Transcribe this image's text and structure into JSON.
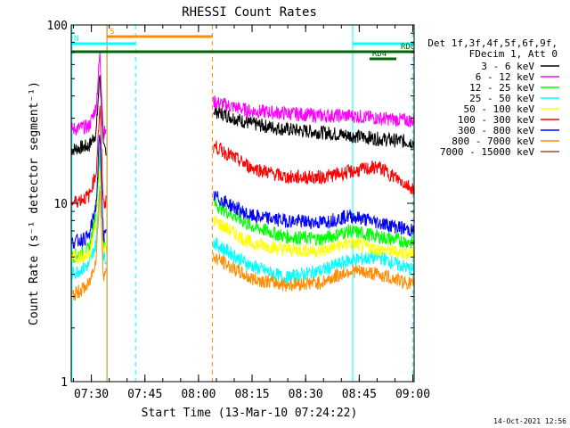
{
  "chart_data": {
    "type": "line",
    "title": "RHESSI Count Rates",
    "xlabel": "Start Time (13-Mar-10 07:24:22)",
    "ylabel": "Count Rate (s⁻¹ detector segment⁻¹)",
    "yscale": "log",
    "ylim": [
      1,
      100
    ],
    "xlim_minutes": [
      0,
      96
    ],
    "x_ticks": [
      {
        "t": 5.63,
        "label": "07:30"
      },
      {
        "t": 20.63,
        "label": "07:45"
      },
      {
        "t": 35.63,
        "label": "08:00"
      },
      {
        "t": 50.63,
        "label": "08:15"
      },
      {
        "t": 65.63,
        "label": "08:30"
      },
      {
        "t": 80.63,
        "label": "08:45"
      },
      {
        "t": 95.63,
        "label": "09:00"
      }
    ],
    "y_ticks": [
      {
        "v": 1,
        "label": "1"
      },
      {
        "v": 10,
        "label": "10"
      },
      {
        "v": 100,
        "label": "100"
      }
    ],
    "data_gap_minutes": [
      9.8,
      39.8
    ],
    "series": [
      {
        "name": "3 - 6 keV",
        "color": "#000000",
        "times": [
          0,
          5,
          7,
          8,
          9,
          40,
          50,
          60,
          70,
          78,
          86,
          96
        ],
        "values": [
          20,
          21,
          25,
          55,
          20,
          33,
          28,
          26,
          25,
          24,
          23,
          22
        ]
      },
      {
        "name": "6 - 12 keV",
        "color": "#ff00ff",
        "times": [
          0,
          5,
          7,
          8,
          9,
          40,
          50,
          60,
          70,
          78,
          86,
          96
        ],
        "values": [
          26,
          27,
          35,
          70,
          25,
          37,
          33,
          32,
          31,
          31,
          30,
          29
        ]
      },
      {
        "name": "12 - 25 keV",
        "color": "#00ff00",
        "times": [
          0,
          5,
          7,
          8,
          9,
          40,
          50,
          60,
          70,
          78,
          86,
          96
        ],
        "values": [
          5,
          5.5,
          9,
          20,
          6,
          10,
          7.5,
          6.5,
          6.3,
          7,
          6.5,
          6
        ]
      },
      {
        "name": "25 - 50 keV",
        "color": "#00ffff",
        "times": [
          0,
          5,
          7,
          8,
          9,
          40,
          50,
          60,
          70,
          78,
          86,
          96
        ],
        "values": [
          4,
          4.5,
          6,
          14,
          5,
          6,
          4.5,
          3.8,
          4.2,
          4.8,
          5,
          4.2
        ]
      },
      {
        "name": "50 - 100 keV",
        "color": "#ffff00",
        "times": [
          0,
          5,
          7,
          8,
          9,
          40,
          50,
          60,
          70,
          78,
          86,
          96
        ],
        "values": [
          5,
          5,
          8,
          16,
          5.5,
          8,
          6,
          5.5,
          5.4,
          6,
          5.5,
          5.2
        ]
      },
      {
        "name": "100 - 300 keV",
        "color": "#ff0000",
        "times": [
          0,
          5,
          7,
          8,
          9,
          40,
          50,
          60,
          70,
          78,
          86,
          96
        ],
        "values": [
          10,
          11,
          15,
          35,
          10,
          21,
          16,
          14,
          14,
          15,
          16,
          12
        ]
      },
      {
        "name": "300 - 800 keV",
        "color": "#0000ff",
        "times": [
          0,
          5,
          7,
          8,
          9,
          40,
          50,
          60,
          70,
          78,
          86,
          96
        ],
        "values": [
          6,
          6.5,
          10,
          25,
          6.5,
          11,
          8.5,
          8,
          7.8,
          8.5,
          7.8,
          7
        ]
      },
      {
        "name": "800 - 7000 keV",
        "color": "#ff8c00",
        "times": [
          0,
          5,
          7,
          8,
          9,
          40,
          50,
          60,
          70,
          78,
          86,
          96
        ],
        "values": [
          3,
          3.5,
          5,
          12,
          4,
          5,
          3.8,
          3.5,
          3.6,
          4.2,
          4,
          3.5
        ]
      },
      {
        "name": "7000 - 15000 keV",
        "color": "#a0522d",
        "times": [],
        "values": []
      }
    ],
    "legend_header": [
      "Det 1f,3f,4f,5f,6f,9f,",
      "FDecim 1, Att 0"
    ],
    "legend_placement": "right",
    "vertical_markers": [
      {
        "t": 0.2,
        "color": "#00ffff",
        "style": "solid"
      },
      {
        "t": 10,
        "color": "#b8860b",
        "style": "solid"
      },
      {
        "t": 18,
        "color": "#00ffff",
        "style": "dashed"
      },
      {
        "t": 39.5,
        "color": "#ff8c00",
        "style": "dashed"
      },
      {
        "t": 78.8,
        "color": "#00ffff",
        "style": "solid"
      },
      {
        "t": 95.7,
        "color": "#00ffff",
        "style": "dashed"
      }
    ],
    "flag_bars": [
      {
        "label": "S",
        "color": "#ff8c00",
        "t0": 10,
        "t1": 39.5,
        "row": 0
      },
      {
        "label": "N",
        "color": "#00ffff",
        "t0": 0,
        "t1": 18,
        "row": 1
      },
      {
        "label": "",
        "color": "#00ffff",
        "t0": 78.8,
        "t1": 96,
        "row": 1
      },
      {
        "label": "",
        "color": "#006400",
        "t0": 0,
        "t1": 96,
        "row": 2
      },
      {
        "label": "RD0",
        "color": "#006400",
        "t0": 91.5,
        "t1": 96,
        "row": 2
      },
      {
        "label": "RD4",
        "color": "#006400",
        "t0": 83.5,
        "t1": 91,
        "row": 3
      }
    ]
  },
  "footer": {
    "timestamp": "14-Oct-2021 12:56"
  }
}
